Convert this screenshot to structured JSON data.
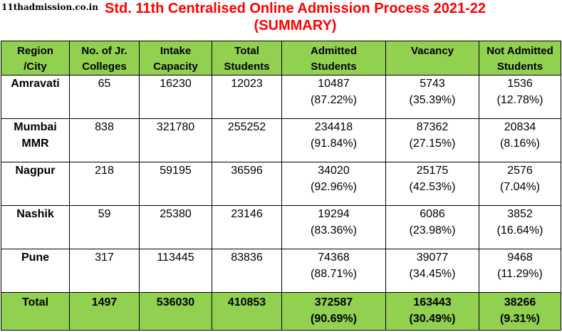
{
  "watermark": "11thadmission.co.in",
  "title_line1": "Std. 11th Centralised Online Admission Process 2021-22",
  "title_line2": "(SUMMARY)",
  "colors": {
    "header_bg": "#92d050",
    "title": "#ff0000"
  },
  "headers": [
    [
      "Region",
      "/City"
    ],
    [
      "No. of Jr.",
      "Colleges"
    ],
    [
      "Intake",
      "Capacity"
    ],
    [
      "Total",
      "Students"
    ],
    [
      "Admitted",
      "Students"
    ],
    [
      "Vacancy",
      ""
    ],
    [
      "Not Admitted",
      "Students"
    ]
  ],
  "rows": [
    {
      "region": [
        "Amravati"
      ],
      "colleges": "65",
      "intake": "16230",
      "total": "12023",
      "admitted": "10487",
      "admitted_pct": "(87.22%)",
      "vacancy": "5743",
      "vacancy_pct": "(35.39%)",
      "not_admitted": "1536",
      "not_admitted_pct": "(12.78%)"
    },
    {
      "region": [
        "Mumbai",
        "MMR"
      ],
      "colleges": "838",
      "intake": "321780",
      "total": "255252",
      "admitted": "234418",
      "admitted_pct": "(91.84%)",
      "vacancy": "87362",
      "vacancy_pct": "(27.15%)",
      "not_admitted": "20834",
      "not_admitted_pct": "(8.16%)"
    },
    {
      "region": [
        "Nagpur"
      ],
      "colleges": "218",
      "intake": "59195",
      "total": "36596",
      "admitted": "34020",
      "admitted_pct": "(92.96%)",
      "vacancy": "25175",
      "vacancy_pct": "(42.53%)",
      "not_admitted": "2576",
      "not_admitted_pct": "(7.04%)"
    },
    {
      "region": [
        "Nashik"
      ],
      "colleges": "59",
      "intake": "25380",
      "total": "23146",
      "admitted": "19294",
      "admitted_pct": "(83.36%)",
      "vacancy": "6086",
      "vacancy_pct": "(23.98%)",
      "not_admitted": "3852",
      "not_admitted_pct": "(16.64%)"
    },
    {
      "region": [
        "Pune"
      ],
      "colleges": "317",
      "intake": "113445",
      "total": "83836",
      "admitted": "74368",
      "admitted_pct": "(88.71%)",
      "vacancy": "39077",
      "vacancy_pct": "(34.45%)",
      "not_admitted": "9468",
      "not_admitted_pct": "(11.29%)"
    }
  ],
  "total_row": {
    "label": "Total",
    "colleges": "1497",
    "intake": "536030",
    "total": "410853",
    "admitted": "372587",
    "admitted_pct": "(90.69%)",
    "vacancy": "163443",
    "vacancy_pct": "(30.49%)",
    "not_admitted": "38266",
    "not_admitted_pct": "(9.31%)"
  }
}
